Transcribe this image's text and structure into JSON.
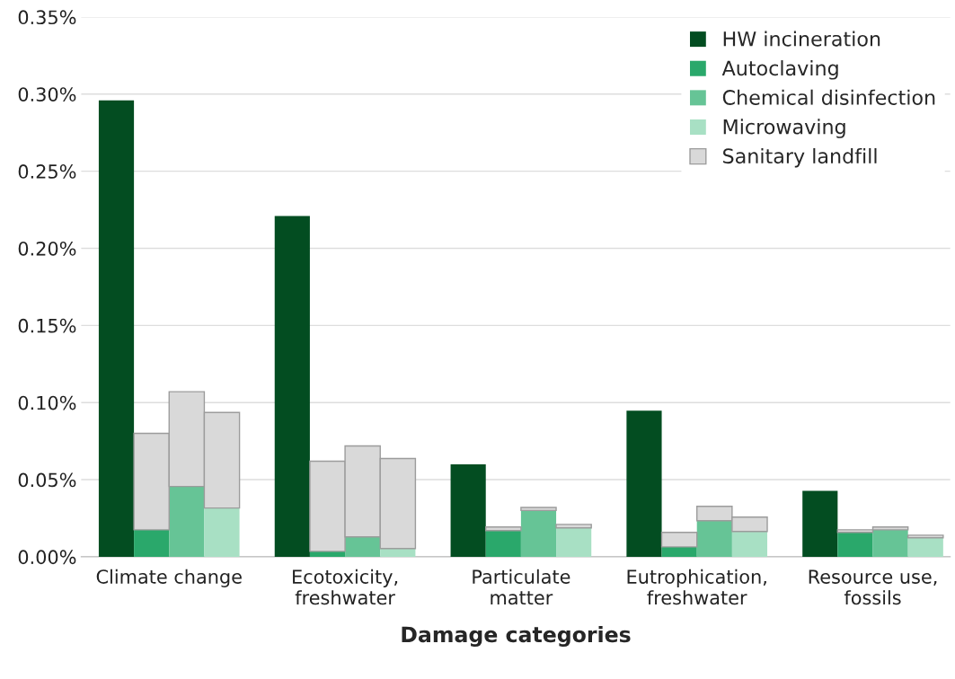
{
  "chart_data": {
    "type": "bar",
    "stacked": true,
    "xlabel": "Damage categories",
    "categories": [
      null,
      null,
      null,
      null,
      null,
      null,
      null,
      null,
      null,
      null,
      null,
      null,
      null,
      null,
      null,
      null,
      null,
      null,
      null,
      null,
      null,
      null,
      null,
      null
    ],
    "annotations": [
      "Climate change",
      "Ecotoxicity,\nfreshwater",
      "Particulate\nmatter",
      "Eutrophication,\nfreshwater",
      "Resource use,\nfossils"
    ],
    "series": [
      {
        "name": "HW incineration",
        "color": "#034d21",
        "values": [
          0.296,
          null,
          null,
          null,
          null,
          0.221,
          null,
          null,
          null,
          null,
          0.06,
          null,
          null,
          null,
          null,
          0.0947,
          null,
          null,
          null,
          null,
          0.0427,
          null,
          null,
          null
        ]
      },
      {
        "name": "Autoclaving",
        "color": "#2aa86b",
        "values": [
          null,
          0.0175,
          null,
          null,
          null,
          null,
          0.0035,
          null,
          null,
          null,
          null,
          0.017,
          null,
          null,
          null,
          null,
          0.0064,
          null,
          null,
          null,
          null,
          0.0158,
          null,
          null
        ]
      },
      {
        "name": "Chemical disinfection",
        "color": "#66c496",
        "values": [
          null,
          null,
          0.0456,
          null,
          null,
          null,
          null,
          0.0129,
          null,
          null,
          null,
          null,
          0.03,
          null,
          null,
          null,
          null,
          0.0234,
          null,
          null,
          null,
          null,
          0.0175,
          null
        ]
      },
      {
        "name": "Microwaving",
        "color": "#a8e0c4",
        "values": [
          null,
          null,
          null,
          0.0316,
          null,
          null,
          null,
          null,
          0.0053,
          null,
          null,
          null,
          null,
          0.0187,
          null,
          null,
          null,
          null,
          0.0164,
          null,
          null,
          null,
          null,
          0.0123
        ]
      },
      {
        "name": "Sanitary landfill",
        "color": "#d9d9d9",
        "values": [
          null,
          0.0625,
          0.0614,
          0.062,
          null,
          null,
          0.0585,
          0.059,
          0.0584,
          null,
          null,
          0.0023,
          0.002,
          0.0023,
          null,
          null,
          0.0094,
          0.0093,
          0.0093,
          null,
          null,
          0.0017,
          0.0018,
          0.0017
        ]
      }
    ],
    "ylim": [
      0,
      0.35
    ],
    "yticks": [
      {
        "value": 0,
        "label": "0.00%"
      },
      {
        "value": 0.05,
        "label": "0.05%"
      },
      {
        "value": 0.1,
        "label": "0.10%"
      },
      {
        "value": 0.15,
        "label": "0.15%"
      },
      {
        "value": 0.2,
        "label": "0.20%"
      },
      {
        "value": 0.25,
        "label": "0.25%"
      },
      {
        "value": 0.3,
        "label": "0.30%"
      },
      {
        "value": 0.35,
        "label": "0.35%"
      }
    ],
    "grid": "y",
    "legend": "top right"
  }
}
